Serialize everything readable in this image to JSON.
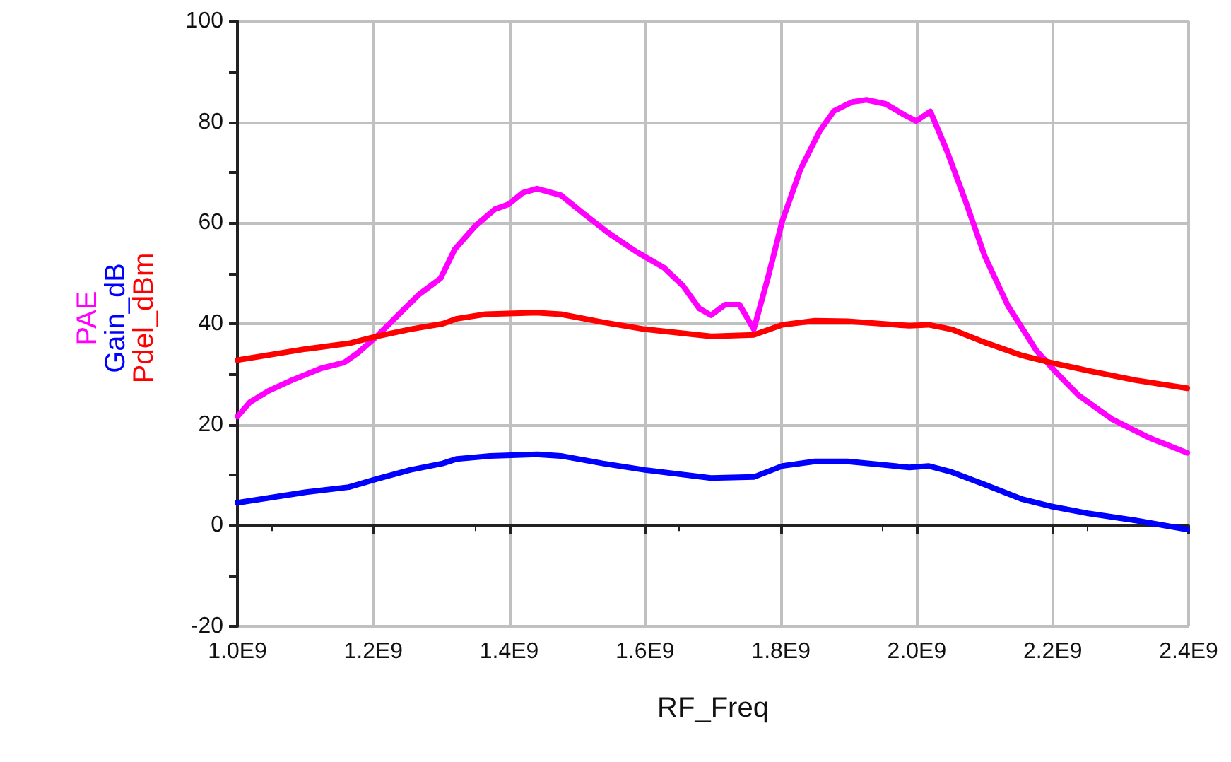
{
  "chart_data": {
    "type": "line",
    "xlabel": "RF_Freq",
    "xlim": [
      1000000000.0,
      2400000000.0
    ],
    "xticks": [
      {
        "value": 1000000000.0,
        "label": "1.0E9"
      },
      {
        "value": 1200000000.0,
        "label": "1.2E9"
      },
      {
        "value": 1400000000.0,
        "label": "1.4E9"
      },
      {
        "value": 1600000000.0,
        "label": "1.6E9"
      },
      {
        "value": 1800000000.0,
        "label": "1.8E9"
      },
      {
        "value": 2000000000.0,
        "label": "2.0E9"
      },
      {
        "value": 2200000000.0,
        "label": "2.2E9"
      },
      {
        "value": 2400000000.0,
        "label": "2.4E9"
      }
    ],
    "ylim": [
      -20,
      100
    ],
    "yticks": [
      -20,
      0,
      20,
      40,
      60,
      80,
      100
    ],
    "grid": true,
    "marker": "none",
    "line_style": "solid",
    "series": [
      {
        "name": "PAE",
        "color": "#ff00ff",
        "x": [
          1000000000.0,
          1018000000.0,
          1046000000.0,
          1080000000.0,
          1122000000.0,
          1157000000.0,
          1177000000.0,
          1205000000.0,
          1240000000.0,
          1268000000.0,
          1299000000.0,
          1320000000.0,
          1351000000.0,
          1379000000.0,
          1399000000.0,
          1420000000.0,
          1441000000.0,
          1476000000.0,
          1510000000.0,
          1545000000.0,
          1587000000.0,
          1628000000.0,
          1656000000.0,
          1680000000.0,
          1697000000.0,
          1718000000.0,
          1739000000.0,
          1760000000.0,
          1781000000.0,
          1802000000.0,
          1829000000.0,
          1857000000.0,
          1878000000.0,
          1905000000.0,
          1926000000.0,
          1954000000.0,
          1982000000.0,
          1999000000.0,
          2020000000.0,
          2044000000.0,
          2072000000.0,
          2100000000.0,
          2134000000.0,
          2176000000.0,
          2204000000.0,
          2238000000.0,
          2287000000.0,
          2342000000.0,
          2398000000.0
        ],
        "values": [
          21.6,
          24.4,
          26.7,
          28.8,
          31.1,
          32.3,
          34.2,
          37.5,
          42.2,
          45.9,
          49.0,
          54.8,
          59.5,
          62.7,
          63.7,
          66.0,
          66.8,
          65.5,
          61.8,
          58.1,
          54.3,
          51.1,
          47.5,
          43.0,
          41.7,
          43.8,
          43.8,
          38.9,
          49.2,
          60.4,
          70.7,
          78.2,
          82.2,
          84.0,
          84.4,
          83.6,
          81.4,
          80.2,
          82.1,
          74.4,
          64.2,
          53.4,
          43.6,
          34.7,
          30.5,
          25.8,
          21.1,
          17.4,
          14.4
        ]
      },
      {
        "name": "Gain_dB",
        "color": "#0000ff",
        "x": [
          1000000000.0,
          1101000000.0,
          1164000000.0,
          1205000000.0,
          1254000000.0,
          1302000000.0,
          1323000000.0,
          1372000000.0,
          1441000000.0,
          1476000000.0,
          1538000000.0,
          1600000000.0,
          1697000000.0,
          1760000000.0,
          1802000000.0,
          1850000000.0,
          1898000000.0,
          1989000000.0,
          2017000000.0,
          2051000000.0,
          2100000000.0,
          2155000000.0,
          2197000000.0,
          2252000000.0,
          2322000000.0,
          2398000000.0
        ],
        "values": [
          4.5,
          6.6,
          7.6,
          9.2,
          11.0,
          12.3,
          13.2,
          13.8,
          14.1,
          13.8,
          12.3,
          11.0,
          9.4,
          9.6,
          11.8,
          12.7,
          12.7,
          11.5,
          11.8,
          10.6,
          8.1,
          5.2,
          3.8,
          2.4,
          1.0,
          -0.8
        ]
      },
      {
        "name": "Pdel_dBm",
        "color": "#ff0000",
        "x": [
          1000000000.0,
          1101000000.0,
          1164000000.0,
          1205000000.0,
          1254000000.0,
          1302000000.0,
          1323000000.0,
          1365000000.0,
          1441000000.0,
          1476000000.0,
          1538000000.0,
          1600000000.0,
          1697000000.0,
          1760000000.0,
          1802000000.0,
          1850000000.0,
          1898000000.0,
          1989000000.0,
          2017000000.0,
          2051000000.0,
          2100000000.0,
          2155000000.0,
          2197000000.0,
          2252000000.0,
          2322000000.0,
          2398000000.0
        ],
        "values": [
          32.8,
          35.0,
          36.1,
          37.5,
          38.9,
          40.0,
          41.0,
          41.9,
          42.2,
          41.9,
          40.3,
          38.9,
          37.5,
          37.8,
          39.8,
          40.6,
          40.5,
          39.6,
          39.8,
          38.9,
          36.3,
          33.7,
          32.3,
          30.7,
          28.8,
          27.2
        ]
      }
    ]
  }
}
